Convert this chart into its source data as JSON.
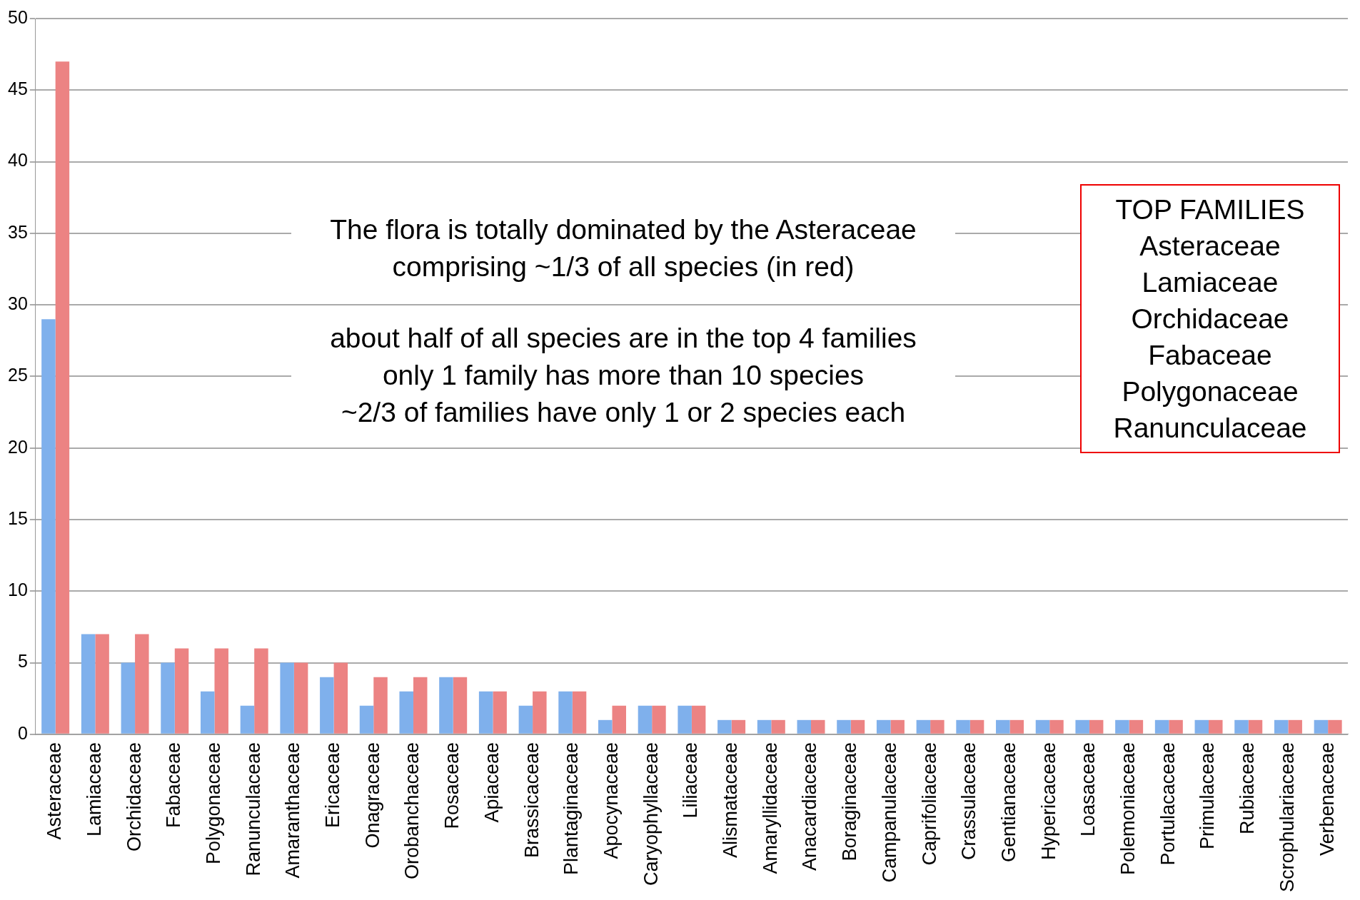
{
  "chart_data": {
    "type": "bar",
    "categories": [
      "Asteraceae",
      "Lamiaceae",
      "Orchidaceae",
      "Fabaceae",
      "Polygonaceae",
      "Ranunculaceae",
      "Amaranthaceae",
      "Ericaceae",
      "Onagraceae",
      "Orobanchaceae",
      "Rosaceae",
      "Apiaceae",
      "Brassicaceae",
      "Plantaginaceae",
      "Apocynaceae",
      "Caryophyllaceae",
      "Liliaceae",
      "Alismataceae",
      "Amaryllidaceae",
      "Anacardiaceae",
      "Boraginaceae",
      "Campanulaceae",
      "Caprifoliaceae",
      "Crassulaceae",
      "Gentianaceae",
      "Hypericaceae",
      "Loasaceae",
      "Polemoniaceae",
      "Portulacaceae",
      "Primulaceae",
      "Rubiaceae",
      "Scrophulariaceae",
      "Verbenaceae"
    ],
    "series": [
      {
        "color": "#7fb0ec",
        "values": [
          29,
          7,
          5,
          5,
          3,
          2,
          5,
          4,
          2,
          3,
          4,
          3,
          2,
          3,
          1,
          2,
          2,
          1,
          1,
          1,
          1,
          1,
          1,
          1,
          1,
          1,
          1,
          1,
          1,
          1,
          1,
          1,
          1
        ]
      },
      {
        "color": "#ec8383",
        "values": [
          47,
          7,
          7,
          6,
          6,
          6,
          5,
          5,
          4,
          4,
          4,
          3,
          3,
          3,
          2,
          2,
          2,
          1,
          1,
          1,
          1,
          1,
          1,
          1,
          1,
          1,
          1,
          1,
          1,
          1,
          1,
          1,
          1
        ]
      }
    ],
    "ylim": [
      0,
      50
    ],
    "yticks": [
      0,
      5,
      10,
      15,
      20,
      25,
      30,
      35,
      40,
      45,
      50
    ],
    "grid": "y",
    "annotations": [
      "The flora is totally dominated by the Asteraceae\ncomprising ~1/3 of all species (in red)",
      "about half of all species are in the top 4 families\nonly 1 family has more than 10 species\n~2/3 of families have only 1 or 2 species each",
      "TOP FAMILIES\nAsteraceae\nLamiaceae\nOrchidaceae\nFabaceae\nPolygonaceae\nRanunculaceae"
    ]
  }
}
